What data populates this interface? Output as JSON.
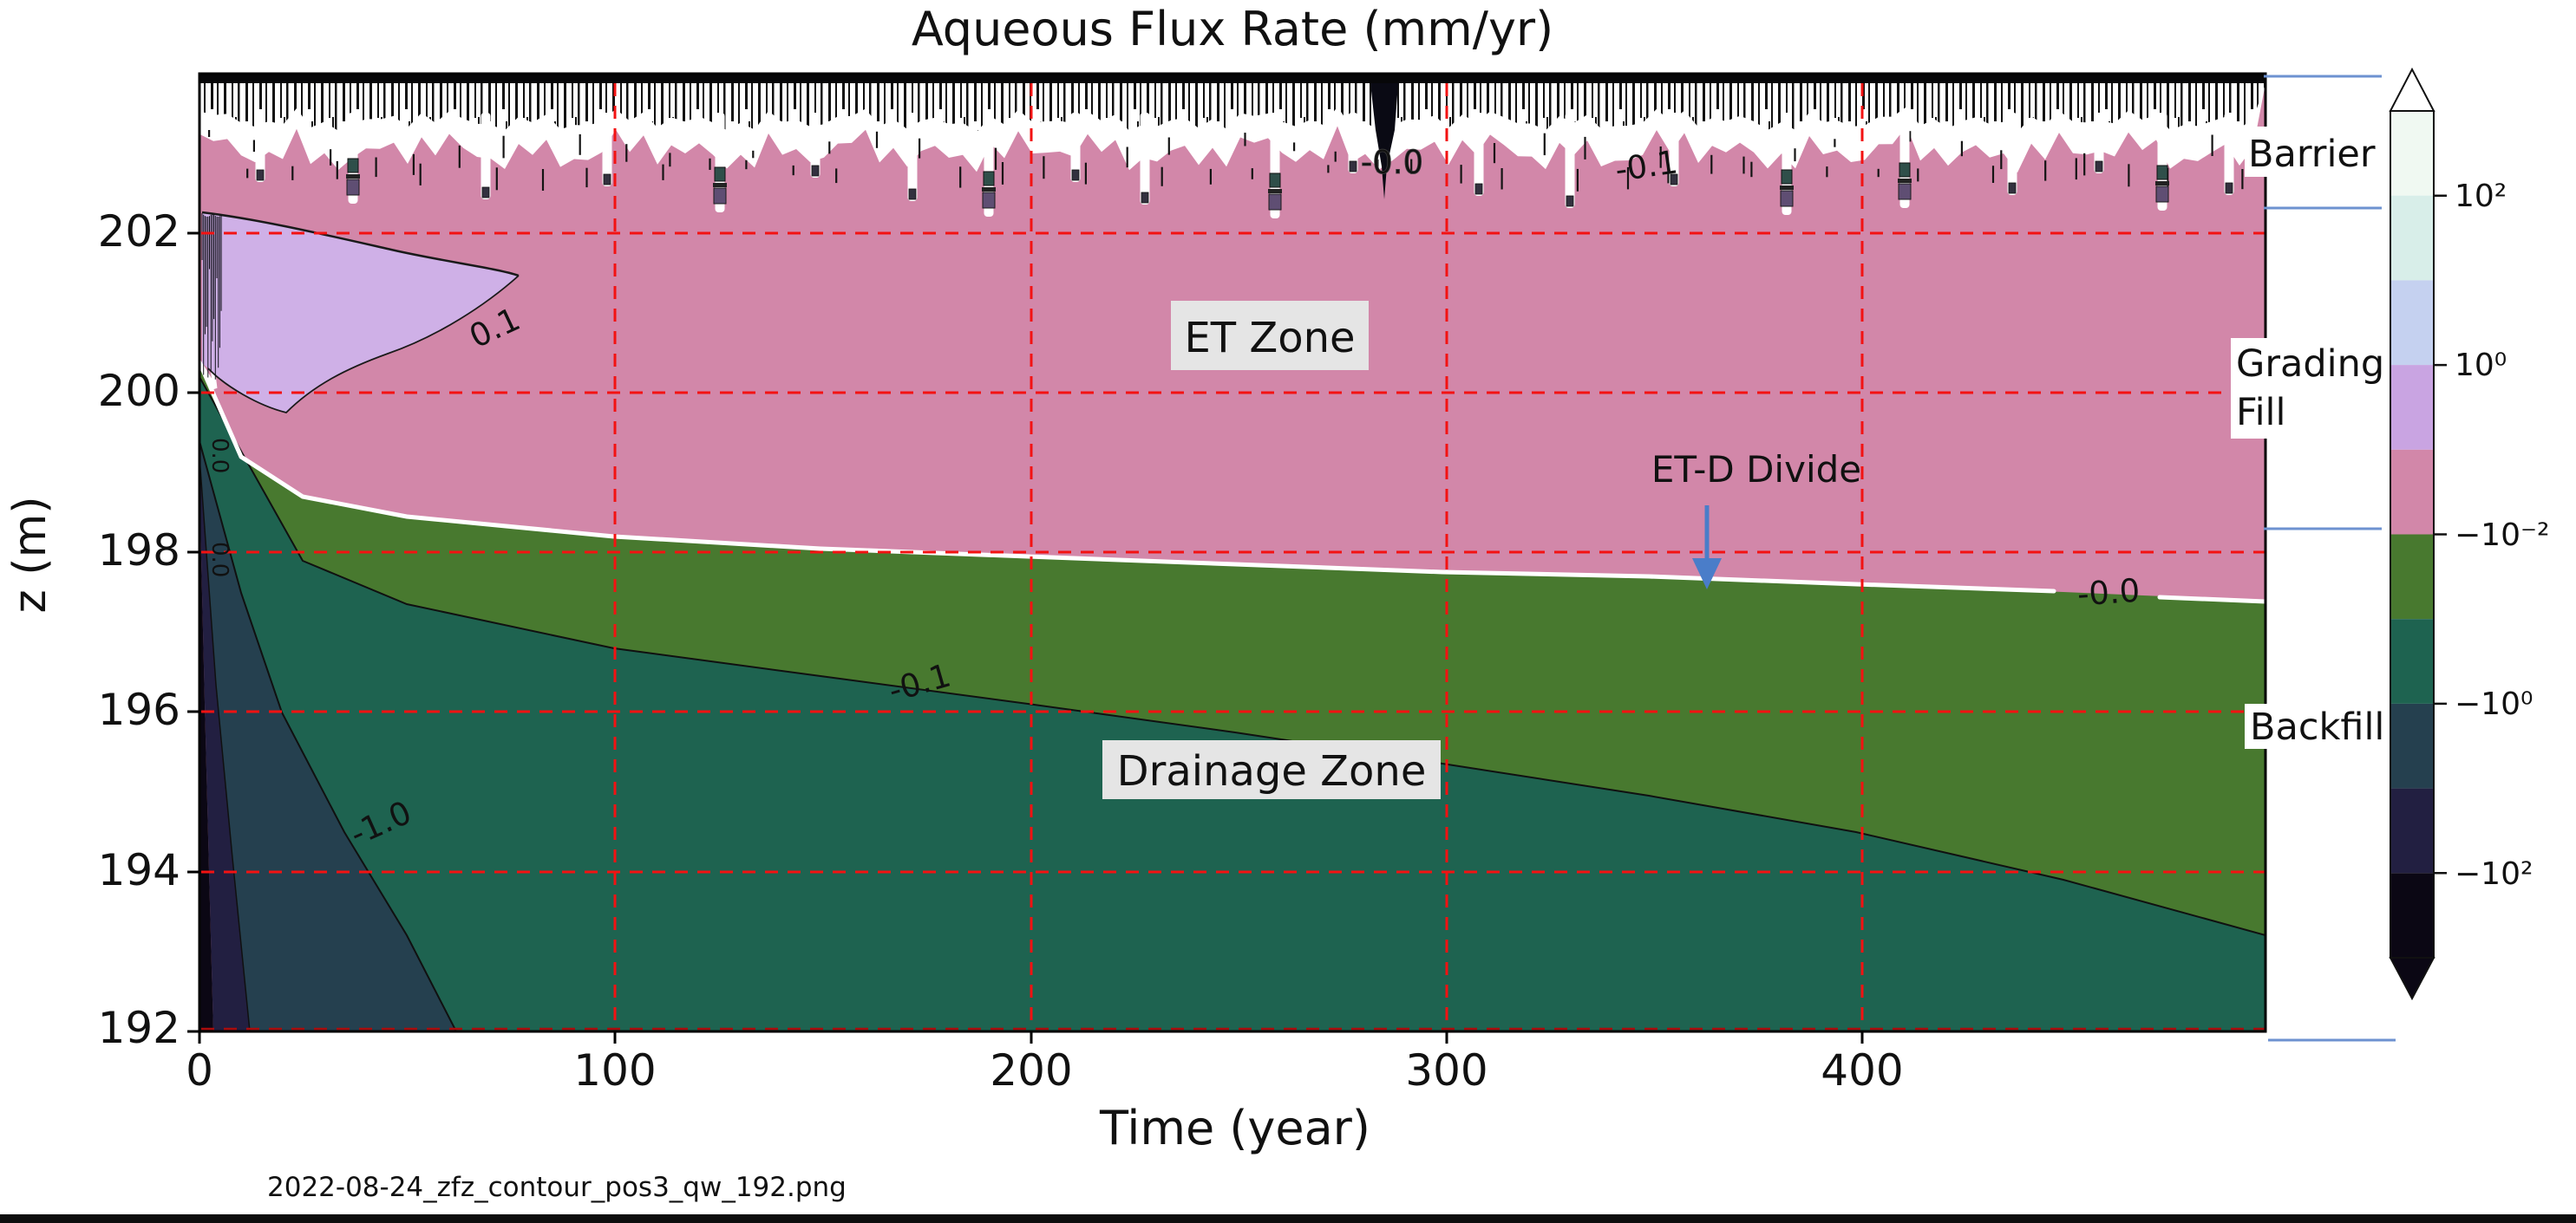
{
  "title": "Aqueous Flux Rate (mm/yr)",
  "axes": {
    "x": {
      "label": "Time (year)",
      "tick_labels": [
        "0",
        "100",
        "200",
        "300",
        "400"
      ]
    },
    "y": {
      "label": "z (m)",
      "tick_labels": [
        "202",
        "200",
        "198",
        "196",
        "194",
        "192"
      ]
    }
  },
  "colorbar": {
    "tick_labels": [
      "10²",
      "10⁰",
      "−10⁻²",
      "−10⁰",
      "−10²"
    ],
    "segment_colors": [
      "#f0f9f2",
      "#d8eee9",
      "#c5d1f0",
      "#c9a4e2",
      "#d287a9",
      "#48792f",
      "#1e6350",
      "#25404f",
      "#221f41",
      "#0b0714"
    ]
  },
  "layers": {
    "barrier": "Barrier",
    "grading_line1": "Grading",
    "grading_line2": "Fill",
    "backfill": "Backfill"
  },
  "annotations": {
    "et_zone": "ET Zone",
    "etd_divide": "ET-D Divide",
    "drainage_zone": "Drainage Zone"
  },
  "contour_labels": {
    "pos_01": "0.1",
    "neg_01": "-0.1",
    "neg_10": "-1.0",
    "neg_00": "-0.0",
    "top_neg_00": "-0.0",
    "top_neg_01": "-0.1",
    "micro_left_a": "0.0",
    "micro_left_b": "0.0"
  },
  "footer": {
    "filename": "2022-08-24_zfz_contour_pos3_qw_192.png"
  },
  "colors": {
    "pink": "#d287a9",
    "lavender": "#cfb0e7",
    "olive": "#48792f",
    "teal": "#1e6350",
    "slate": "#25404f",
    "navy": "#221f41",
    "black_region": "#0b0714",
    "grid_red": "#f31212",
    "divide_white": "#ffffff",
    "arrow_blue": "#4a7dc9",
    "layer_line_blue": "#6d92d0",
    "label_bbox": "#e5e5e5"
  },
  "chart_data": {
    "type": "contour",
    "title": "Aqueous Flux Rate (mm/yr)",
    "xlabel": "Time (year)",
    "ylabel": "z (m)",
    "xlim": [
      0,
      500
    ],
    "ylim": [
      192,
      204
    ],
    "x_ticks": [
      0,
      100,
      200,
      300,
      400
    ],
    "y_ticks": [
      202,
      200,
      198,
      196,
      194,
      192
    ],
    "grid": {
      "style": "dashed",
      "color": "#ff0000",
      "x": [
        100,
        200,
        300,
        400
      ],
      "y": [
        202,
        200,
        198,
        196,
        194
      ]
    },
    "colorbar": {
      "scale": "symlog",
      "extend": "both",
      "tick_labels": [
        "10²",
        "10⁰",
        "−10⁻²",
        "−10⁰",
        "−10²"
      ],
      "segment_colors": [
        "#f0f9f2",
        "#d8eee9",
        "#c5d1f0",
        "#c9a4e2",
        "#d287a9",
        "#48792f",
        "#1e6350",
        "#25404f",
        "#221f41",
        "#0b0714"
      ]
    },
    "material_layers": [
      {
        "name": "Barrier",
        "z_range": [
          202.4,
          204
        ]
      },
      {
        "name": "Grading Fill",
        "z_range": [
          198.3,
          202.4
        ]
      },
      {
        "name": "Backfill",
        "z_range": [
          192,
          198.3
        ]
      }
    ],
    "contour_lines": [
      {
        "level": 0.1,
        "closed_region": true,
        "points_t_z": [
          [
            0,
            202.3
          ],
          [
            20,
            202.2
          ],
          [
            40,
            202.0
          ],
          [
            60,
            201.8
          ],
          [
            77,
            201.5
          ],
          [
            60,
            200.3
          ],
          [
            40,
            199.9
          ],
          [
            21,
            199.8
          ],
          [
            5,
            200.1
          ],
          [
            0,
            200.45
          ]
        ]
      },
      {
        "level": -0.0,
        "label": "-0.0",
        "name": "ET-D Divide",
        "points_t_z": [
          [
            0,
            200.4
          ],
          [
            10,
            199.2
          ],
          [
            25,
            198.7
          ],
          [
            50,
            198.45
          ],
          [
            100,
            198.2
          ],
          [
            150,
            198.05
          ],
          [
            200,
            197.95
          ],
          [
            250,
            197.85
          ],
          [
            300,
            197.75
          ],
          [
            350,
            197.7
          ],
          [
            400,
            197.6
          ],
          [
            450,
            197.5
          ],
          [
            497,
            197.4
          ]
        ]
      },
      {
        "level": -0.1,
        "points_t_z": [
          [
            0,
            200.2
          ],
          [
            25,
            197.9
          ],
          [
            50,
            197.35
          ],
          [
            100,
            196.8
          ],
          [
            150,
            196.45
          ],
          [
            200,
            196.1
          ],
          [
            250,
            195.75
          ],
          [
            300,
            195.35
          ],
          [
            350,
            194.95
          ],
          [
            400,
            194.5
          ],
          [
            450,
            193.9
          ],
          [
            497,
            193.2
          ]
        ]
      },
      {
        "level": -1.0,
        "points_t_z": [
          [
            0,
            199.4
          ],
          [
            10,
            197.5
          ],
          [
            20,
            196.0
          ],
          [
            35,
            194.5
          ],
          [
            50,
            193.2
          ],
          [
            62,
            192.0
          ]
        ]
      },
      {
        "level": -10.0,
        "points_t_z": [
          [
            0,
            199.2
          ],
          [
            4,
            196.3
          ],
          [
            8,
            194.1
          ],
          [
            12,
            192.0
          ]
        ]
      },
      {
        "level": -100.0,
        "points_t_z": [
          [
            0,
            198.8
          ],
          [
            1.5,
            195.5
          ],
          [
            2.5,
            193.6
          ],
          [
            3.3,
            192.0
          ]
        ]
      }
    ],
    "annotations": [
      "ET Zone",
      "ET-D Divide",
      "Drainage Zone"
    ]
  }
}
